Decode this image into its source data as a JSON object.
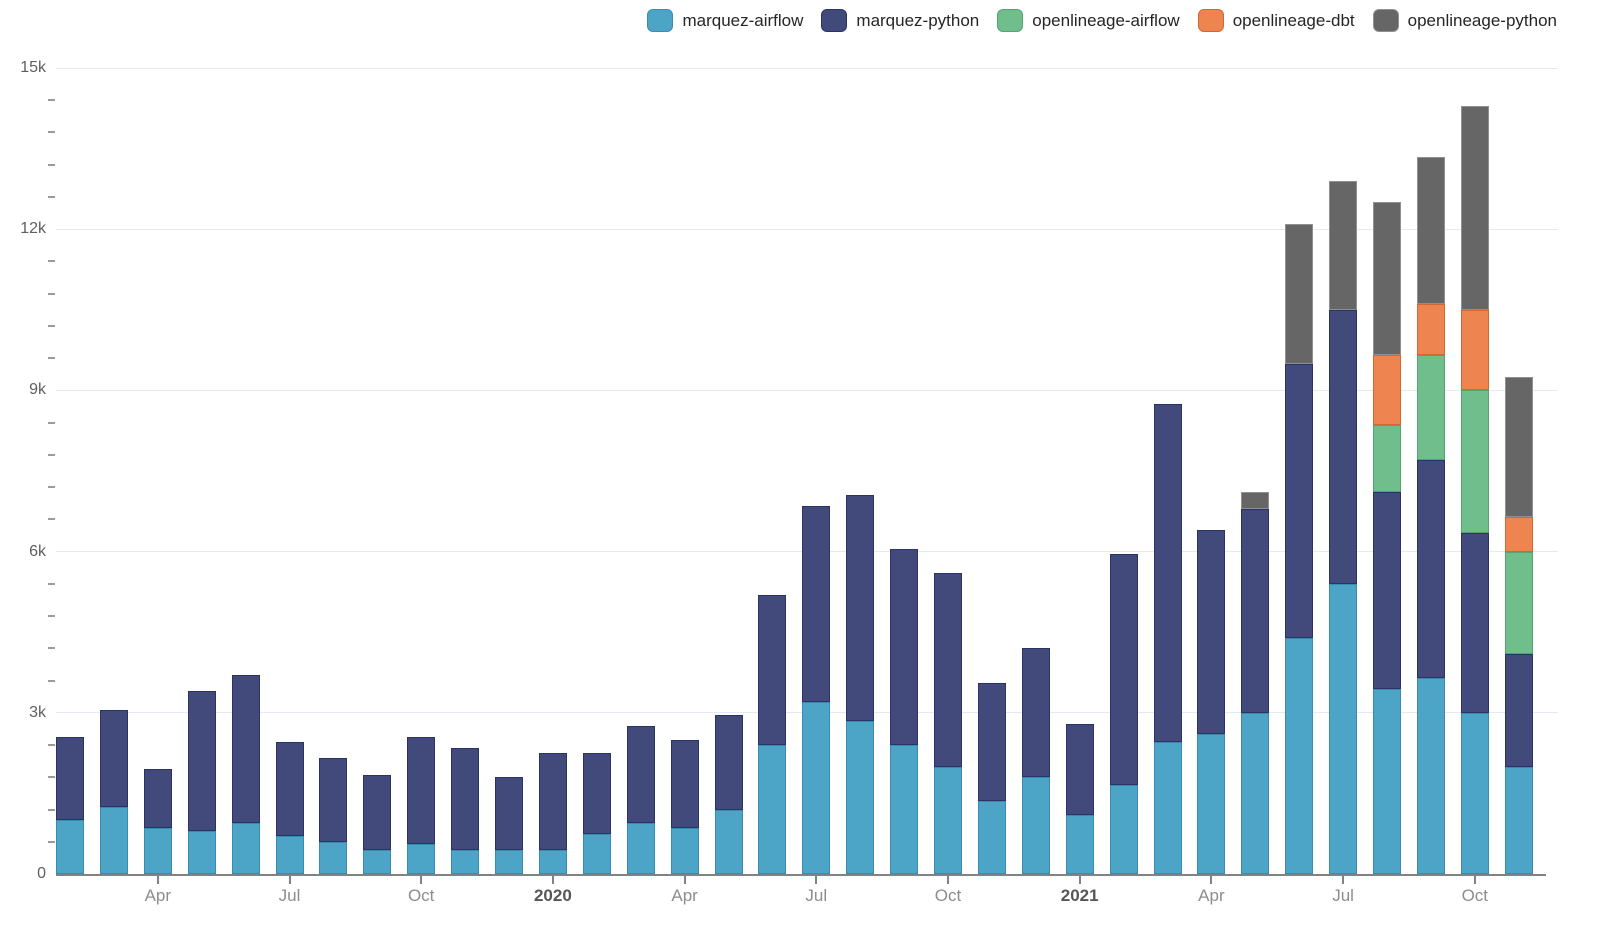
{
  "page": {
    "background": "#ffffff"
  },
  "axis_colors": {
    "gridline": "#e5e9f3",
    "axis_line": "#828282",
    "minor_tick": "#9a9a9a",
    "y_label": "#5f5f5f",
    "x_label": "#8d8d8d",
    "x_label_year": "#565656"
  },
  "chart_data": {
    "type": "bar",
    "stacked": true,
    "title": "",
    "xlabel": "",
    "ylabel": "",
    "legend_position": "top",
    "grid": true,
    "ylim": [
      0,
      15000
    ],
    "y_axis": {
      "minor_step": 600,
      "ticks": [
        {
          "v": 0,
          "label": "0"
        },
        {
          "v": 3000,
          "label": "3k"
        },
        {
          "v": 6000,
          "label": "6k"
        },
        {
          "v": 9000,
          "label": "9k"
        },
        {
          "v": 12000,
          "label": "12k"
        },
        {
          "v": 15000,
          "label": "15k"
        }
      ]
    },
    "x": [
      "Feb 2019",
      "Mar 2019",
      "Apr 2019",
      "May 2019",
      "Jun 2019",
      "Jul 2019",
      "Aug 2019",
      "Sep 2019",
      "Oct 2019",
      "Nov 2019",
      "Dec 2019",
      "Jan 2020",
      "Feb 2020",
      "Mar 2020",
      "Apr 2020",
      "May 2020",
      "Jun 2020",
      "Jul 2020",
      "Aug 2020",
      "Sep 2020",
      "Oct 2020",
      "Nov 2020",
      "Dec 2020",
      "Jan 2021",
      "Feb 2021",
      "Mar 2021",
      "Apr 2021",
      "May 2021",
      "Jun 2021",
      "Jul 2021",
      "Aug 2021",
      "Sep 2021",
      "Oct 2021",
      "Nov 2021"
    ],
    "x_tick_labels": [
      {
        "index": 2,
        "label": "Apr",
        "bold": false
      },
      {
        "index": 5,
        "label": "Jul",
        "bold": false
      },
      {
        "index": 8,
        "label": "Oct",
        "bold": false
      },
      {
        "index": 11,
        "label": "2020",
        "bold": true
      },
      {
        "index": 14,
        "label": "Apr",
        "bold": false
      },
      {
        "index": 17,
        "label": "Jul",
        "bold": false
      },
      {
        "index": 20,
        "label": "Oct",
        "bold": false
      },
      {
        "index": 23,
        "label": "2021",
        "bold": true
      },
      {
        "index": 26,
        "label": "Apr",
        "bold": false
      },
      {
        "index": 29,
        "label": "Jul",
        "bold": false
      },
      {
        "index": 32,
        "label": "Oct",
        "bold": false
      }
    ],
    "series": [
      {
        "name": "marquez-airflow",
        "color": "#4ca5c6",
        "border_color": "#3a8cae",
        "values": [
          1000,
          1250,
          850,
          800,
          950,
          700,
          600,
          450,
          550,
          450,
          450,
          450,
          750,
          950,
          850,
          1200,
          2400,
          3200,
          2850,
          2400,
          2000,
          1350,
          1800,
          1100,
          1650,
          2450,
          2600,
          3000,
          4400,
          5400,
          3450,
          3650,
          3000,
          2000
        ]
      },
      {
        "name": "marquez-python",
        "color": "#414a7b",
        "border_color": "#2a3364",
        "values": [
          1550,
          1800,
          1100,
          2600,
          2750,
          1750,
          1550,
          1400,
          2000,
          1900,
          1350,
          1800,
          1500,
          1800,
          1650,
          1750,
          2800,
          3650,
          4200,
          3650,
          3600,
          2200,
          2400,
          1700,
          4300,
          6300,
          3800,
          3800,
          5100,
          5100,
          3650,
          4050,
          3350,
          2100
        ]
      },
      {
        "name": "openlineage-airflow",
        "color": "#6fbe8c",
        "border_color": "#53a473",
        "values": [
          0,
          0,
          0,
          0,
          0,
          0,
          0,
          0,
          0,
          0,
          0,
          0,
          0,
          0,
          0,
          0,
          0,
          0,
          0,
          0,
          0,
          0,
          0,
          0,
          0,
          0,
          0,
          0,
          0,
          0,
          1250,
          1950,
          2650,
          1900
        ]
      },
      {
        "name": "openlineage-dbt",
        "color": "#ee8450",
        "border_color": "#d3672f",
        "values": [
          0,
          0,
          0,
          0,
          0,
          0,
          0,
          0,
          0,
          0,
          0,
          0,
          0,
          0,
          0,
          0,
          0,
          0,
          0,
          0,
          0,
          0,
          0,
          0,
          0,
          0,
          0,
          0,
          0,
          0,
          1300,
          950,
          1500,
          650
        ]
      },
      {
        "name": "openlineage-python",
        "color": "#666666",
        "border_color": "#909090",
        "values": [
          0,
          0,
          0,
          0,
          0,
          0,
          0,
          0,
          0,
          0,
          0,
          0,
          0,
          0,
          0,
          0,
          0,
          0,
          0,
          0,
          0,
          0,
          0,
          0,
          0,
          0,
          0,
          300,
          2600,
          2400,
          2850,
          2750,
          3800,
          2600
        ]
      }
    ]
  }
}
